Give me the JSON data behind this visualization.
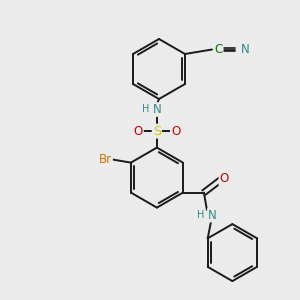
{
  "bg_color": "#ebebeb",
  "line_color": "#1a1a1a",
  "bond_lw": 1.4,
  "atom_colors": {
    "N": "#2e8b8b",
    "S": "#cccc00",
    "O": "#cc0000",
    "Br": "#cc7700",
    "C": "#007700",
    "H": "#2e8b8b"
  },
  "font_size": 8.5,
  "fig_size": [
    3.0,
    3.0
  ],
  "dpi": 100
}
